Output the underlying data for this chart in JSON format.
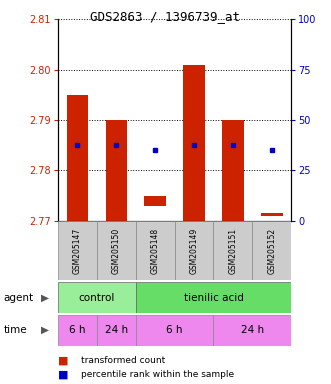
{
  "title": "GDS2863 / 1396739_at",
  "samples": [
    "GSM205147",
    "GSM205150",
    "GSM205148",
    "GSM205149",
    "GSM205151",
    "GSM205152"
  ],
  "bar_bottoms": [
    2.77,
    2.77,
    2.773,
    2.77,
    2.77,
    2.771
  ],
  "bar_tops": [
    2.795,
    2.79,
    2.775,
    2.801,
    2.79,
    2.7715
  ],
  "percentile_values": [
    2.785,
    2.785,
    2.784,
    2.785,
    2.785,
    2.784
  ],
  "ylim_left": [
    2.77,
    2.81
  ],
  "yticks_left": [
    2.77,
    2.78,
    2.79,
    2.8,
    2.81
  ],
  "yticks_right": [
    0,
    25,
    50,
    75,
    100
  ],
  "ylim_right": [
    0,
    100
  ],
  "bar_color": "#cc2200",
  "percentile_color": "#0000cc",
  "tick_label_color_left": "#cc2200",
  "tick_label_color_right": "#0000cc",
  "grid_color": "#000000",
  "agent_color_control": "#99ee99",
  "agent_color_tienilic": "#66dd66",
  "time_color": "#ee88ee",
  "sample_box_color": "#cccccc",
  "legend_red_label": "transformed count",
  "legend_blue_label": "percentile rank within the sample"
}
